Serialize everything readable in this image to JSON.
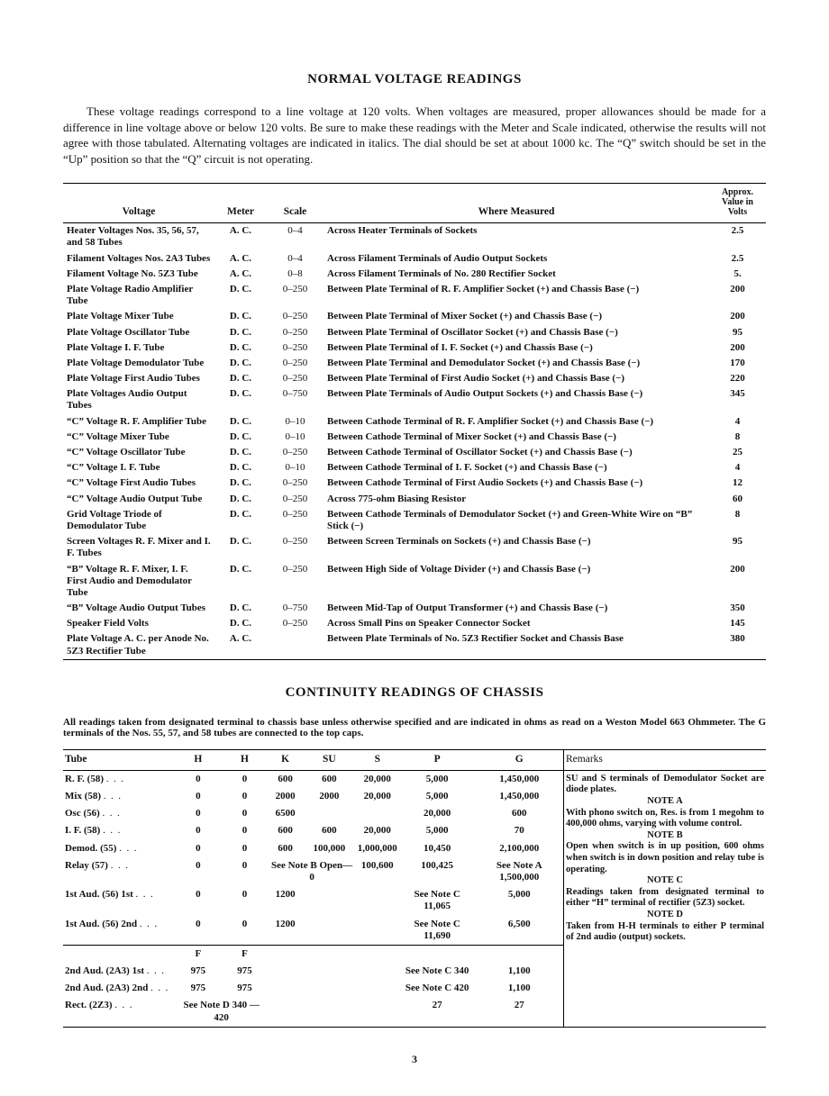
{
  "page": {
    "title1": "NORMAL VOLTAGE READINGS",
    "intro": "These voltage readings correspond to a line voltage at 120 volts. When voltages are measured, proper allowances should be made for a difference in line voltage above or below 120 volts. Be sure to make these readings with the Meter and Scale indicated, otherwise the results will not agree with those tabulated. Alternating voltages are indicated in italics. The dial should be set at about 1000 kc. The “Q” switch should be set in the “Up” position so that the “Q” circuit is not operating.",
    "title2": "CONTINUITY READINGS OF CHASSIS",
    "note2": "All readings taken from designated terminal to chassis base unless otherwise specified and are indicated in ohms as read on a Weston Model 663 Ohmmeter. The G terminals of the Nos. 55, 57, and 58 tubes are connected to the top caps.",
    "pagenum": "3"
  },
  "voltage_table": {
    "headers": {
      "voltage": "Voltage",
      "meter": "Meter",
      "scale": "Scale",
      "where": "Where Measured",
      "val": "Approx. Value in Volts"
    },
    "rows": [
      {
        "v": "Heater Voltages Nos. 35, 56, 57, and 58 Tubes",
        "m": "A. C.",
        "s": "0–4",
        "w": "Across Heater Terminals of Sockets",
        "val": "2.5"
      },
      {
        "v": "Filament Voltages Nos. 2A3 Tubes",
        "m": "A. C.",
        "s": "0–4",
        "w": "Across Filament Terminals of Audio Output Sockets",
        "val": "2.5"
      },
      {
        "v": "Filament Voltage No. 5Z3 Tube",
        "m": "A. C.",
        "s": "0–8",
        "w": "Across Filament Terminals of No. 280 Rectifier Socket",
        "val": "5."
      },
      {
        "v": "Plate Voltage Radio Amplifier Tube",
        "m": "D. C.",
        "s": "0–250",
        "w": "Between Plate Terminal of R. F. Amplifier Socket (+) and Chassis Base (−)",
        "val": "200"
      },
      {
        "v": "Plate Voltage Mixer Tube",
        "m": "D. C.",
        "s": "0–250",
        "w": "Between Plate Terminal of Mixer Socket (+) and Chassis Base (−)",
        "val": "200"
      },
      {
        "v": "Plate Voltage Oscillator Tube",
        "m": "D. C.",
        "s": "0–250",
        "w": "Between Plate Terminal of Oscillator Socket (+) and Chassis Base (−)",
        "val": "95"
      },
      {
        "v": "Plate Voltage I. F. Tube",
        "m": "D. C.",
        "s": "0–250",
        "w": "Between Plate Terminal of I. F. Socket (+) and Chassis Base (−)",
        "val": "200"
      },
      {
        "v": "Plate Voltage Demodulator Tube",
        "m": "D. C.",
        "s": "0–250",
        "w": "Between Plate Terminal and Demodulator Socket (+) and Chassis Base (−)",
        "val": "170"
      },
      {
        "v": "Plate Voltage First Audio Tubes",
        "m": "D. C.",
        "s": "0–250",
        "w": "Between Plate Terminal of First Audio Socket (+) and Chassis Base (−)",
        "val": "220"
      },
      {
        "v": "Plate Voltages Audio Output Tubes",
        "m": "D. C.",
        "s": "0–750",
        "w": "Between Plate Terminals of Audio Output Sockets (+) and Chassis Base (−)",
        "val": "345"
      },
      {
        "v": "“C” Voltage R. F. Amplifier Tube",
        "m": "D. C.",
        "s": "0–10",
        "w": "Between Cathode Terminal of R. F. Amplifier Socket (+) and Chassis Base (−)",
        "val": "4"
      },
      {
        "v": "“C” Voltage Mixer Tube",
        "m": "D. C.",
        "s": "0–10",
        "w": "Between Cathode Terminal of Mixer Socket (+) and Chassis Base (−)",
        "val": "8"
      },
      {
        "v": "“C” Voltage Oscillator Tube",
        "m": "D. C.",
        "s": "0–250",
        "w": "Between Cathode Terminal of Oscillator Socket (+) and Chassis Base (−)",
        "val": "25"
      },
      {
        "v": "“C” Voltage I. F. Tube",
        "m": "D. C.",
        "s": "0–10",
        "w": "Between Cathode Terminal of I. F. Socket (+) and Chassis Base (−)",
        "val": "4"
      },
      {
        "v": "“C” Voltage First Audio Tubes",
        "m": "D. C.",
        "s": "0–250",
        "w": "Between Cathode Terminal of First Audio Sockets (+) and Chassis Base (−)",
        "val": "12"
      },
      {
        "v": "“C” Voltage Audio Output Tube",
        "m": "D. C.",
        "s": "0–250",
        "w": "Across 775-ohm Biasing Resistor",
        "val": "60"
      },
      {
        "v": "Grid Voltage Triode of Demodulator Tube",
        "m": "D. C.",
        "s": "0–250",
        "w": "Between Cathode Terminals of Demodulator Socket (+) and Green-White Wire on “B” Stick (−)",
        "val": "8"
      },
      {
        "v": "Screen Voltages R. F. Mixer and I. F. Tubes",
        "m": "D. C.",
        "s": "0–250",
        "w": "Between Screen Terminals on Sockets (+) and Chassis Base (−)",
        "val": "95"
      },
      {
        "v": "“B” Voltage R. F. Mixer, I. F. First Audio and Demodulator Tube",
        "m": "D. C.",
        "s": "0–250",
        "w": "Between High Side of Voltage Divider (+) and Chassis Base (−)",
        "val": "200"
      },
      {
        "v": "“B” Voltage Audio Output Tubes",
        "m": "D. C.",
        "s": "0–750",
        "w": "Between Mid-Tap of Output Transformer (+) and Chassis Base (−)",
        "val": "350"
      },
      {
        "v": "Speaker Field Volts",
        "m": "D. C.",
        "s": "0–250",
        "w": "Across Small Pins on Speaker Connector Socket",
        "val": "145"
      },
      {
        "v": "Plate Voltage A. C. per Anode No. 5Z3 Rectifier Tube",
        "m": "A. C.",
        "s": "",
        "w": "Between Plate Terminals of No. 5Z3 Rectifier Socket and Chassis Base",
        "val": "380"
      }
    ]
  },
  "continuity_table": {
    "headers": [
      "Tube",
      "H",
      "H",
      "K",
      "SU",
      "S",
      "P",
      "G",
      "Remarks"
    ],
    "rows": [
      {
        "t": "R. F. (58)",
        "h1": "0",
        "h2": "0",
        "k": "600",
        "su": "600",
        "s": "20,000",
        "p": "5,000",
        "g": "1,450,000"
      },
      {
        "t": "Mix (58)",
        "h1": "0",
        "h2": "0",
        "k": "2000",
        "su": "2000",
        "s": "20,000",
        "p": "5,000",
        "g": "1,450,000"
      },
      {
        "t": "Osc (56)",
        "h1": "0",
        "h2": "0",
        "k": "6500",
        "su": "",
        "s": "",
        "p": "20,000",
        "g": "600"
      },
      {
        "t": "I. F. (58)",
        "h1": "0",
        "h2": "0",
        "k": "600",
        "su": "600",
        "s": "20,000",
        "p": "5,000",
        "g": "70"
      },
      {
        "t": "Demod. (55)",
        "h1": "0",
        "h2": "0",
        "k": "600",
        "su": "100,000",
        "s": "1,000,000",
        "p": "10,450",
        "g": "2,100,000"
      },
      {
        "t": "Relay (57)",
        "h1": "0",
        "h2": "0",
        "k": "See Note B Open—0",
        "su": "",
        "s": "100,600",
        "p": "100,425",
        "g": "See Note A 1,500,000"
      },
      {
        "t": "1st Aud. (56) 1st",
        "h1": "0",
        "h2": "0",
        "k": "1200",
        "su": "",
        "s": "",
        "p": "See Note C 11,065",
        "g": "5,000"
      },
      {
        "t": "1st Aud. (56) 2nd",
        "h1": "0",
        "h2": "0",
        "k": "1200",
        "su": "",
        "s": "",
        "p": "See Note C 11,690",
        "g": "6,500"
      },
      {
        "t": "",
        "h1": "F",
        "h2": "F",
        "k": "",
        "su": "",
        "s": "",
        "p": "",
        "g": ""
      },
      {
        "t": "2nd Aud. (2A3) 1st",
        "h1": "975",
        "h2": "975",
        "k": "",
        "su": "",
        "s": "",
        "p": "See Note C 340",
        "g": "1,100"
      },
      {
        "t": "2nd Aud. (2A3) 2nd",
        "h1": "975",
        "h2": "975",
        "k": "",
        "su": "",
        "s": "",
        "p": "See Note C 420",
        "g": "1,100"
      },
      {
        "t": "Rect. (2Z3)",
        "h1": "See Note D 340 — 420",
        "h2": "",
        "k": "",
        "su": "",
        "s": "",
        "p": "27",
        "g": "27"
      }
    ],
    "remarks": [
      "SU and S terminals of Demodulator Socket are diode plates.",
      "NOTE A",
      "With phono switch on, Res. is from 1 megohm to 400,000 ohms, varying with volume control.",
      "NOTE B",
      "Open when switch is in up position, 600 ohms when switch is in down position and relay tube is operating.",
      "NOTE C",
      "Readings taken from designated terminal to either “H” terminal of rectifier (5Z3) socket.",
      "NOTE D",
      "Taken from H-H terminals to either P terminal of 2nd audio (output) sockets."
    ]
  }
}
